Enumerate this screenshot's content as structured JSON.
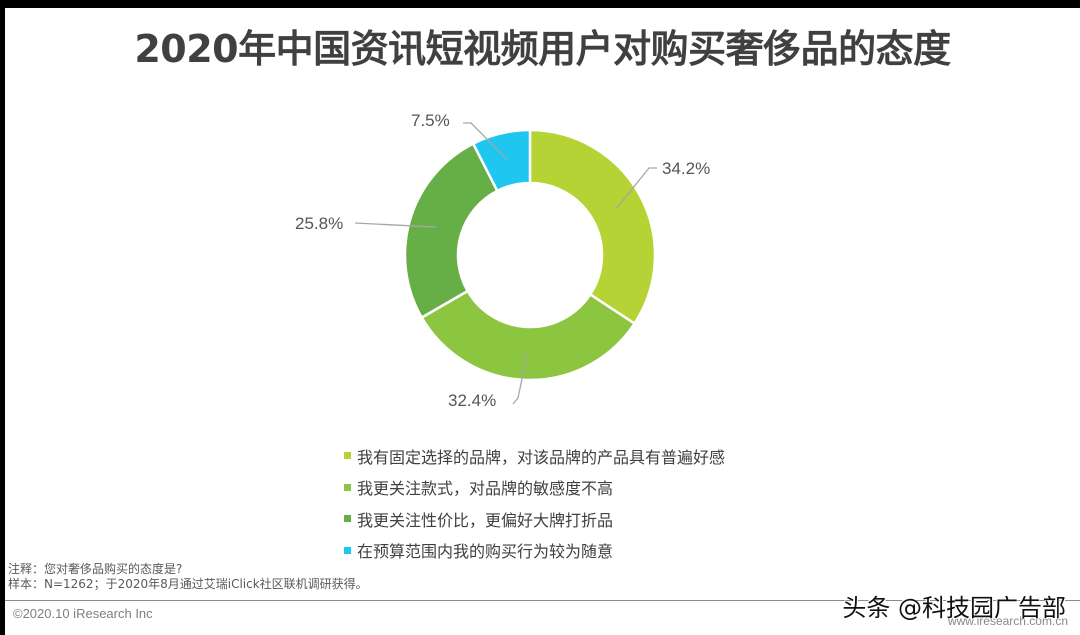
{
  "title": "2020年中国资讯短视频用户对购买奢侈品的态度",
  "chart_data": {
    "type": "pie",
    "subtype": "donut",
    "title": "2020年中国资讯短视频用户对购买奢侈品的态度",
    "categories": [
      "我有固定选择的品牌，对该品牌的产品具有普遍好感",
      "我更关注款式，对品牌的敏感度不高",
      "我更关注性价比，更偏好大牌打折品",
      "在预算范围内我的购买行为较为随意"
    ],
    "values": [
      34.2,
      32.4,
      25.8,
      7.5
    ],
    "unit": "%",
    "labels": [
      "34.2%",
      "32.4%",
      "25.8%",
      "7.5%"
    ],
    "colors": [
      "#B5D334",
      "#8CC53F",
      "#66AE46",
      "#1EC6F0"
    ],
    "start_angle": "12 o'clock, clockwise",
    "legend_position": "bottom"
  },
  "legend": [
    {
      "label": "我有固定选择的品牌，对该品牌的产品具有普遍好感",
      "color": "#B5D334"
    },
    {
      "label": "我更关注款式，对品牌的敏感度不高",
      "color": "#8CC53F"
    },
    {
      "label": "我更关注性价比，更偏好大牌打折品",
      "color": "#66AE46"
    },
    {
      "label": "在预算范围内我的购买行为较为随意",
      "color": "#1EC6F0"
    }
  ],
  "notes": {
    "note": "注释：您对奢侈品购买的态度是?",
    "sample": "样本：N=1262；于2020年8月通过艾瑞iClick社区联机调研获得。"
  },
  "footer": {
    "copyright": "©2020.10 iResearch Inc",
    "site": "www.iresearch.com.cn",
    "watermark": "头条 @科技园广告部"
  }
}
